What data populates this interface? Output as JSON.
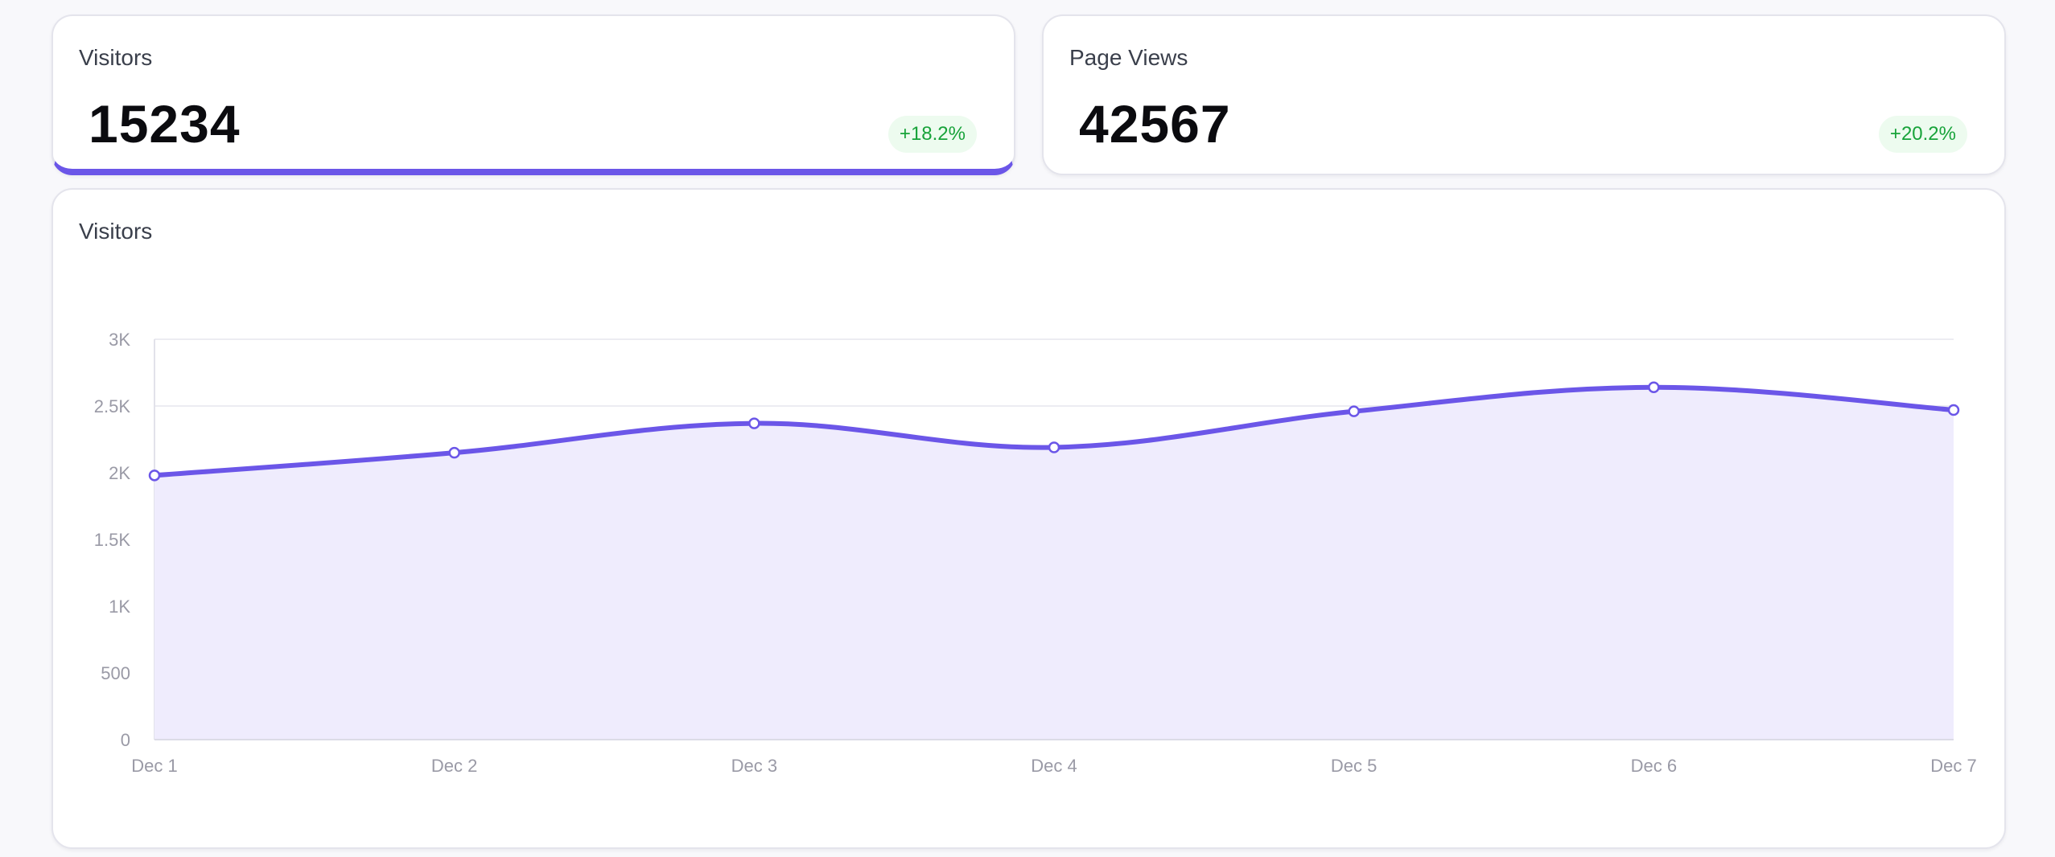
{
  "stats": [
    {
      "label": "Visitors",
      "value": "15234",
      "change": "+18.2%"
    },
    {
      "label": "Page Views",
      "value": "42567",
      "change": "+20.2%"
    }
  ],
  "colors": {
    "accent": "#6b56e8",
    "area_fill": "#efecfd",
    "positive_text": "#18a33a",
    "positive_bg": "#edfbef"
  },
  "chart": {
    "title": "Visitors"
  },
  "chart_data": {
    "type": "area",
    "title": "Visitors",
    "categories": [
      "Dec 1",
      "Dec 2",
      "Dec 3",
      "Dec 4",
      "Dec 5",
      "Dec 6",
      "Dec 7"
    ],
    "series": [
      {
        "values": [
          1980,
          2150,
          2370,
          2190,
          2460,
          2640,
          2470
        ]
      }
    ],
    "ylim": [
      0,
      3000
    ],
    "y_ticks": [
      0,
      500,
      1000,
      1500,
      2000,
      2500,
      3000
    ],
    "y_tick_labels": [
      "0",
      "500",
      "1K",
      "1.5K",
      "2K",
      "2.5K",
      "3K"
    ],
    "grid": true,
    "legend": "none"
  }
}
